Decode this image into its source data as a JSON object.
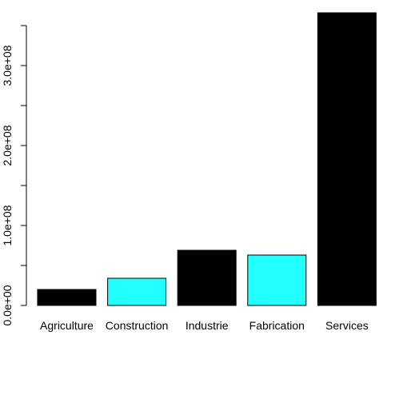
{
  "chart_data": {
    "type": "bar",
    "title": "",
    "xlabel": "",
    "ylabel": "",
    "categories": [
      "Agriculture",
      "Construction",
      "Industrie",
      "Fabrication",
      "Services"
    ],
    "values": [
      20000000,
      34000000,
      69000000,
      63000000,
      366000000
    ],
    "bar_colors": [
      "#000000",
      "#22FFFF",
      "#000000",
      "#22FFFF",
      "#000000"
    ],
    "bar_border_color": "#000000",
    "ylim": [
      0,
      366000000
    ],
    "y_ticks": [
      0,
      50000000,
      100000000,
      150000000,
      200000000,
      250000000,
      300000000,
      350000000
    ],
    "y_tick_labels": [
      {
        "value": 0,
        "label": "0.0e+00"
      },
      {
        "value": 100000000,
        "label": "1.0e+08"
      },
      {
        "value": 200000000,
        "label": "2.0e+08"
      },
      {
        "value": 300000000,
        "label": "3.0e+08"
      }
    ],
    "grid": false,
    "legend": "none"
  }
}
